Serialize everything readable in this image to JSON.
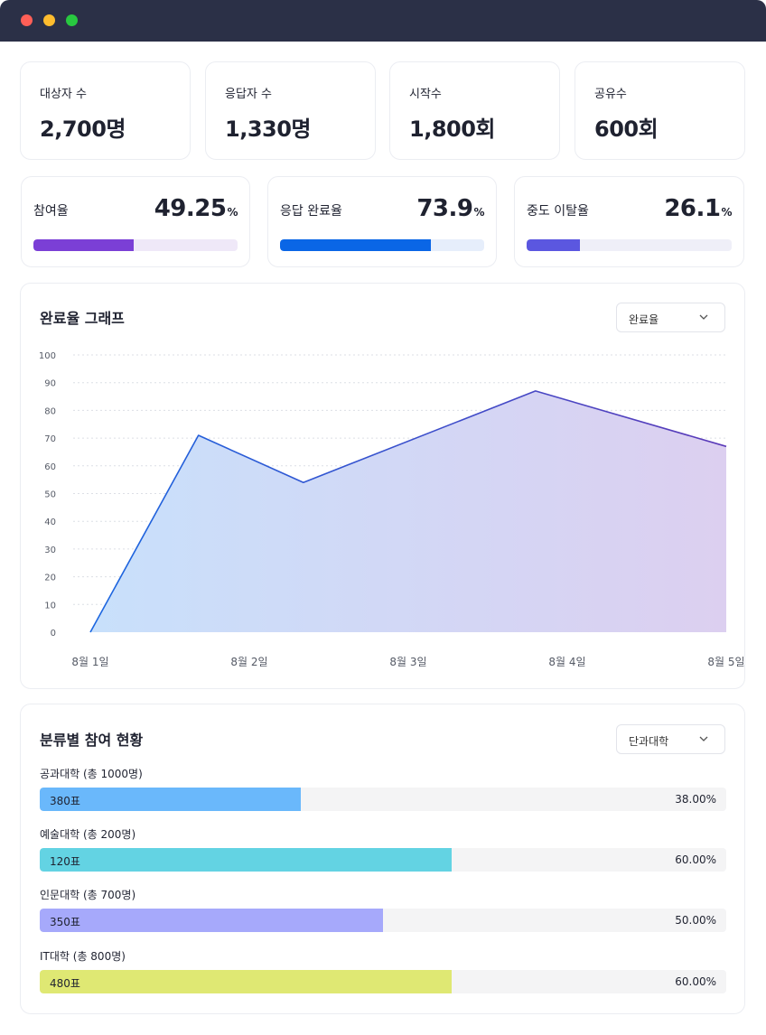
{
  "window": {
    "controls": [
      {
        "name": "close",
        "color": "#ff5f57"
      },
      {
        "name": "minimize",
        "color": "#febc2e"
      },
      {
        "name": "maximize",
        "color": "#28c840"
      }
    ]
  },
  "stats": [
    {
      "label": "대상자 수",
      "value": "2,700명"
    },
    {
      "label": "응답자 수",
      "value": "1,330명"
    },
    {
      "label": "시작수",
      "value": "1,800회"
    },
    {
      "label": "공유수",
      "value": "600회"
    }
  ],
  "rates": [
    {
      "label": "참여율",
      "value": "49.25",
      "unit": "%",
      "fraction": 0.4925,
      "color": "#7b3fd6",
      "track_color": "#efe8f8"
    },
    {
      "label": "응답 완료율",
      "value": "73.9",
      "unit": "%",
      "fraction": 0.739,
      "color": "#0a66e6",
      "track_color": "#e6eefb"
    },
    {
      "label": "중도 이탈율",
      "value": "26.1",
      "unit": "%",
      "fraction": 0.261,
      "color": "#5b57e0",
      "track_color": "#efeff8"
    }
  ],
  "completion_chart": {
    "title": "완료율 그래프",
    "select": {
      "selected": "완료율",
      "icon": "chevron-down-icon"
    }
  },
  "chart_data": {
    "type": "area",
    "title": "",
    "xlabel": "",
    "ylabel": "",
    "ylim": [
      0,
      100
    ],
    "yticks": [
      0,
      10,
      20,
      30,
      40,
      50,
      60,
      70,
      80,
      90,
      100
    ],
    "x_labels": [
      "8월 1일",
      "8월 2일",
      "8월 3일",
      "8월 4일",
      "8월 5일"
    ],
    "points": [
      {
        "x": 0,
        "y": 0
      },
      {
        "x": 0.68,
        "y": 71
      },
      {
        "x": 1.34,
        "y": 54
      },
      {
        "x": 2.8,
        "y": 87
      },
      {
        "x": 4,
        "y": 67
      }
    ],
    "grid": true,
    "colors": {
      "line_start": "#1a66e0",
      "line_end": "#5b3ab8",
      "fill_start": "#c8e0fb",
      "fill_end": "#dccff0"
    }
  },
  "category_section": {
    "title": "분류별 참여 현황",
    "select": {
      "selected": "단과대학",
      "icon": "chevron-down-icon"
    },
    "items": [
      {
        "label": "공과대학 (총 1000명)",
        "votes": "380표",
        "percent": "38.00%",
        "fraction": 0.38,
        "color": "#6ab8fb"
      },
      {
        "label": "예술대학 (총 200명)",
        "votes": "120표",
        "percent": "60.00%",
        "fraction": 0.6,
        "color": "#63d3e3"
      },
      {
        "label": "인문대학 (총 700명)",
        "votes": "350표",
        "percent": "50.00%",
        "fraction": 0.5,
        "color": "#a6a9fb"
      },
      {
        "label": "IT대학 (총 800명)",
        "votes": "480표",
        "percent": "60.00%",
        "fraction": 0.6,
        "color": "#dfe873"
      }
    ]
  }
}
